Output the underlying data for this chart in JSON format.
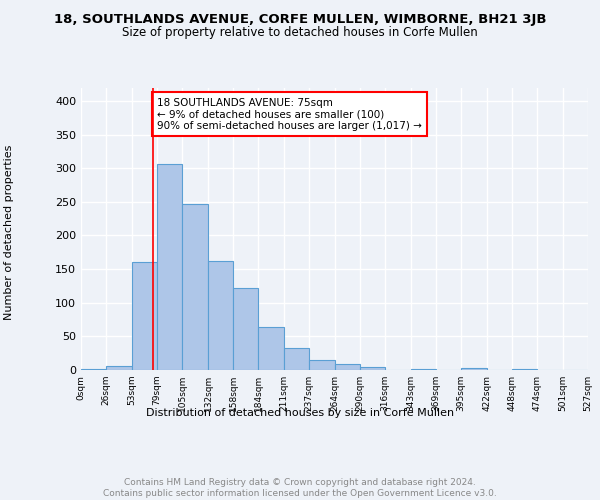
{
  "title": "18, SOUTHLANDS AVENUE, CORFE MULLEN, WIMBORNE, BH21 3JB",
  "subtitle": "Size of property relative to detached houses in Corfe Mullen",
  "xlabel": "Distribution of detached houses by size in Corfe Mullen",
  "ylabel": "Number of detached properties",
  "bin_edges": [
    0,
    26,
    53,
    79,
    105,
    132,
    158,
    184,
    211,
    237,
    264,
    290,
    316,
    343,
    369,
    395,
    422,
    448,
    474,
    501,
    527
  ],
  "bar_heights": [
    2,
    6,
    160,
    307,
    247,
    162,
    122,
    64,
    32,
    15,
    9,
    4,
    0,
    2,
    0,
    3,
    0,
    2,
    0,
    0
  ],
  "bar_color": "#aec6e8",
  "bar_edge_color": "#5a9fd4",
  "property_line_x": 75,
  "property_line_color": "red",
  "annotation_text": "18 SOUTHLANDS AVENUE: 75sqm\n← 9% of detached houses are smaller (100)\n90% of semi-detached houses are larger (1,017) →",
  "annotation_box_color": "white",
  "annotation_box_edge_color": "red",
  "ylim": [
    0,
    420
  ],
  "yticks": [
    0,
    50,
    100,
    150,
    200,
    250,
    300,
    350,
    400
  ],
  "tick_labels": [
    "0sqm",
    "26sqm",
    "53sqm",
    "79sqm",
    "105sqm",
    "132sqm",
    "158sqm",
    "184sqm",
    "211sqm",
    "237sqm",
    "264sqm",
    "290sqm",
    "316sqm",
    "343sqm",
    "369sqm",
    "395sqm",
    "422sqm",
    "448sqm",
    "474sqm",
    "501sqm",
    "527sqm"
  ],
  "background_color": "#eef2f8",
  "plot_background_color": "#eef2f8",
  "grid_color": "white",
  "footer_text": "Contains HM Land Registry data © Crown copyright and database right 2024.\nContains public sector information licensed under the Open Government Licence v3.0.",
  "footer_color": "#888888"
}
